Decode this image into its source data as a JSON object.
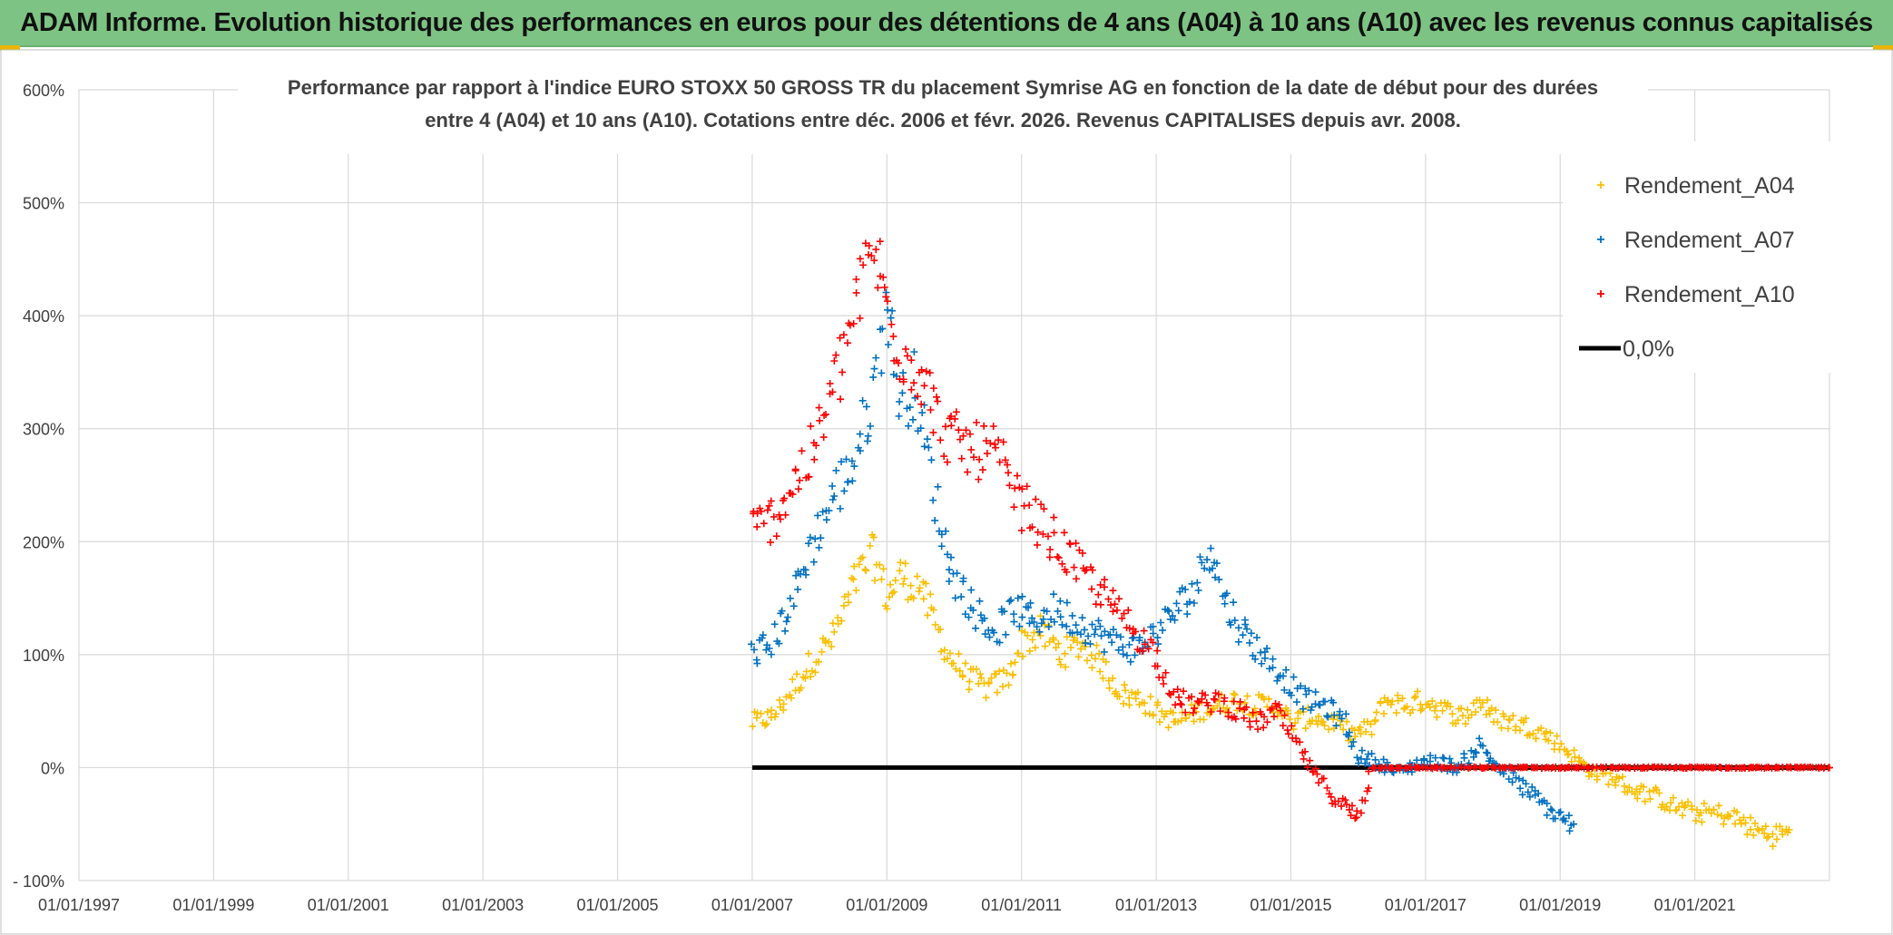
{
  "banner": {
    "title": "ADAM Informe. Evolution historique des performances en euros pour des détentions de 4 ans (A04) à 10 ans (A10) avec les revenus connus capitalisés"
  },
  "colors": {
    "banner_bg": "#7dc383",
    "a04": "#fbbf00",
    "a07": "#0070c0",
    "a10": "#ff0000",
    "zero_line": "#000000",
    "grid": "#d9d9d9"
  },
  "chart_data": {
    "type": "scatter",
    "title_line1": "Performance par rapport à l'indice EURO STOXX 50 GROSS TR  du placement Symrise AG en fonction de la date de début pour des durées",
    "title_line2": "entre 4 (A04) et 10 ans (A10). Cotations entre déc. 2006 et févr. 2026. Revenus CAPITALISES depuis avr. 2008.",
    "xlabel": "",
    "ylabel": "",
    "xlim": [
      1997.0,
      2023.0
    ],
    "ylim": [
      -100,
      600
    ],
    "x_ticks": [
      1997,
      1999,
      2001,
      2003,
      2005,
      2007,
      2009,
      2011,
      2013,
      2015,
      2017,
      2019,
      2021
    ],
    "x_tick_labels": [
      "01/01/1997",
      "01/01/1999",
      "01/01/2001",
      "01/01/2003",
      "01/01/2005",
      "01/01/2007",
      "01/01/2009",
      "01/01/2011",
      "01/01/2013",
      "01/01/2015",
      "01/01/2017",
      "01/01/2019",
      "01/01/2021"
    ],
    "y_ticks": [
      -100,
      0,
      100,
      200,
      300,
      400,
      500,
      600
    ],
    "y_tick_labels": [
      "- 100%",
      "0%",
      "100%",
      "200%",
      "300%",
      "400%",
      "500%",
      "600%"
    ],
    "legend_position": "top-right",
    "series": [
      {
        "name": "Rendement_A04",
        "marker": "plus",
        "points": [
          [
            2007.0,
            40
          ],
          [
            2007.3,
            45
          ],
          [
            2007.6,
            70
          ],
          [
            2007.9,
            95
          ],
          [
            2008.2,
            115
          ],
          [
            2008.5,
            160
          ],
          [
            2008.8,
            190
          ],
          [
            2009.0,
            150
          ],
          [
            2009.2,
            170
          ],
          [
            2009.5,
            160
          ],
          [
            2009.7,
            130
          ],
          [
            2009.9,
            100
          ],
          [
            2010.2,
            80
          ],
          [
            2010.5,
            70
          ],
          [
            2010.8,
            80
          ],
          [
            2011.0,
            110
          ],
          [
            2011.3,
            120
          ],
          [
            2011.6,
            100
          ],
          [
            2011.9,
            110
          ],
          [
            2012.2,
            90
          ],
          [
            2012.5,
            65
          ],
          [
            2012.8,
            60
          ],
          [
            2013.0,
            50
          ],
          [
            2013.3,
            40
          ],
          [
            2013.6,
            50
          ],
          [
            2013.9,
            55
          ],
          [
            2014.2,
            60
          ],
          [
            2014.5,
            55
          ],
          [
            2014.8,
            55
          ],
          [
            2015.0,
            40
          ],
          [
            2015.3,
            45
          ],
          [
            2015.6,
            40
          ],
          [
            2015.9,
            30
          ],
          [
            2016.2,
            35
          ],
          [
            2016.4,
            60
          ],
          [
            2016.7,
            55
          ],
          [
            2017.0,
            60
          ],
          [
            2017.3,
            50
          ],
          [
            2017.6,
            45
          ],
          [
            2017.8,
            60
          ],
          [
            2018.0,
            45
          ],
          [
            2018.3,
            40
          ],
          [
            2018.6,
            35
          ],
          [
            2018.9,
            25
          ],
          [
            2019.2,
            10
          ],
          [
            2019.5,
            -5
          ],
          [
            2019.8,
            -10
          ],
          [
            2020.1,
            -20
          ],
          [
            2020.4,
            -25
          ],
          [
            2020.7,
            -35
          ],
          [
            2021.0,
            -40
          ],
          [
            2021.3,
            -40
          ],
          [
            2021.6,
            -45
          ],
          [
            2021.9,
            -55
          ],
          [
            2022.2,
            -60
          ],
          [
            2022.4,
            -55
          ]
        ]
      },
      {
        "name": "Rendement_A07",
        "marker": "plus",
        "points": [
          [
            2007.0,
            100
          ],
          [
            2007.3,
            110
          ],
          [
            2007.6,
            150
          ],
          [
            2007.9,
            200
          ],
          [
            2008.2,
            240
          ],
          [
            2008.5,
            270
          ],
          [
            2008.8,
            330
          ],
          [
            2009.0,
            420
          ],
          [
            2009.2,
            320
          ],
          [
            2009.4,
            340
          ],
          [
            2009.6,
            280
          ],
          [
            2009.8,
            210
          ],
          [
            2010.0,
            170
          ],
          [
            2010.3,
            140
          ],
          [
            2010.6,
            120
          ],
          [
            2010.9,
            140
          ],
          [
            2011.2,
            130
          ],
          [
            2011.5,
            140
          ],
          [
            2011.8,
            130
          ],
          [
            2012.1,
            120
          ],
          [
            2012.4,
            110
          ],
          [
            2012.7,
            105
          ],
          [
            2013.0,
            120
          ],
          [
            2013.3,
            140
          ],
          [
            2013.6,
            160
          ],
          [
            2013.8,
            200
          ],
          [
            2014.0,
            150
          ],
          [
            2014.3,
            120
          ],
          [
            2014.6,
            100
          ],
          [
            2014.9,
            80
          ],
          [
            2015.2,
            60
          ],
          [
            2015.5,
            55
          ],
          [
            2015.8,
            40
          ],
          [
            2016.0,
            10
          ],
          [
            2016.3,
            5
          ],
          [
            2016.6,
            -5
          ],
          [
            2016.9,
            5
          ],
          [
            2017.2,
            5
          ],
          [
            2017.5,
            0
          ],
          [
            2017.8,
            20
          ],
          [
            2018.1,
            0
          ],
          [
            2018.4,
            -15
          ],
          [
            2018.7,
            -30
          ],
          [
            2019.0,
            -45
          ],
          [
            2019.2,
            -50
          ]
        ]
      },
      {
        "name": "Rendement_A10",
        "marker": "plus",
        "points": [
          [
            2007.0,
            210
          ],
          [
            2007.3,
            220
          ],
          [
            2007.6,
            250
          ],
          [
            2007.9,
            280
          ],
          [
            2008.2,
            330
          ],
          [
            2008.5,
            400
          ],
          [
            2008.8,
            460
          ],
          [
            2009.0,
            410
          ],
          [
            2009.2,
            370
          ],
          [
            2009.5,
            350
          ],
          [
            2009.8,
            300
          ],
          [
            2010.0,
            290
          ],
          [
            2010.3,
            280
          ],
          [
            2010.6,
            280
          ],
          [
            2010.9,
            240
          ],
          [
            2011.2,
            220
          ],
          [
            2011.5,
            200
          ],
          [
            2011.8,
            180
          ],
          [
            2012.1,
            160
          ],
          [
            2012.4,
            140
          ],
          [
            2012.7,
            120
          ],
          [
            2013.0,
            100
          ],
          [
            2013.3,
            60
          ],
          [
            2013.6,
            55
          ],
          [
            2013.9,
            60
          ],
          [
            2014.2,
            50
          ],
          [
            2014.5,
            40
          ],
          [
            2014.8,
            50
          ],
          [
            2015.1,
            20
          ],
          [
            2015.4,
            -10
          ],
          [
            2015.7,
            -30
          ],
          [
            2016.0,
            -45
          ],
          [
            2016.2,
            0
          ],
          [
            2016.8,
            0
          ],
          [
            2017.5,
            0
          ],
          [
            2018.5,
            0
          ],
          [
            2019.5,
            0
          ],
          [
            2020.5,
            0
          ],
          [
            2021.5,
            0
          ],
          [
            2023.0,
            0
          ]
        ]
      },
      {
        "name": "0,0%",
        "marker": "line",
        "points": [
          [
            2007.0,
            0
          ],
          [
            2023.0,
            0
          ]
        ]
      }
    ]
  }
}
